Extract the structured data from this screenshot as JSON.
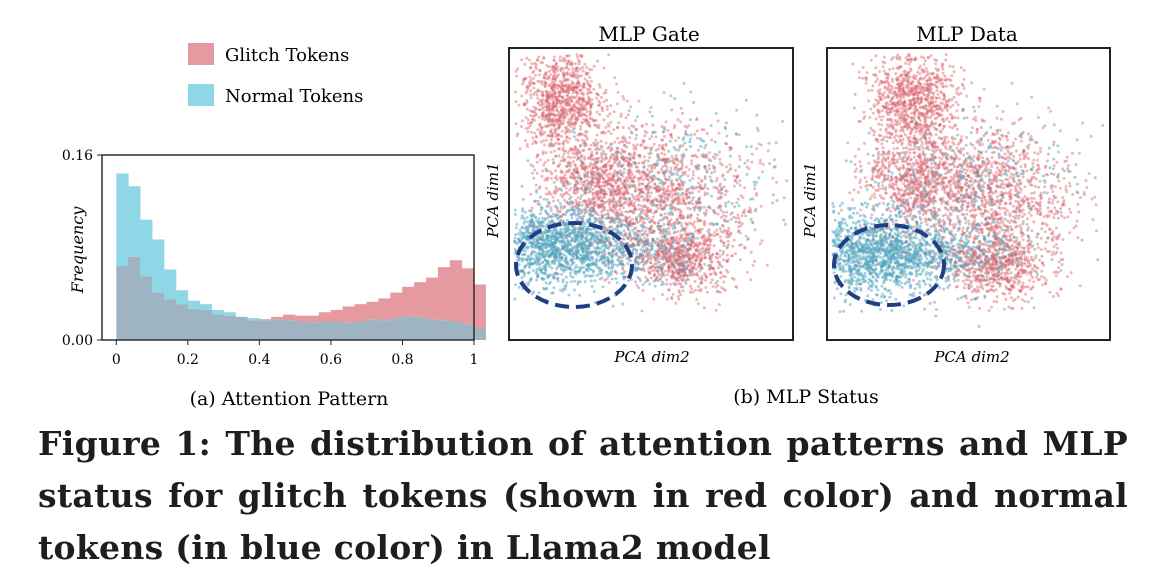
{
  "legend": {
    "glitch_label": "Glitch Tokens",
    "normal_label": "Normal Tokens"
  },
  "colors": {
    "glitch": "#e59a9f",
    "normal": "#8fd6e6",
    "overlap": "#9fb4c3",
    "glitch_dot": "#d9646c",
    "normal_dot": "#4fa3bd",
    "ellipse": "#1f3f82"
  },
  "subcaptions": {
    "a": "(a) Attention Pattern",
    "b": "(b) MLP Status"
  },
  "scatter_titles": {
    "gate": "MLP Gate",
    "data": "MLP Data"
  },
  "caption_lines": [
    "Figure 1: The distribution of attention patterns and MLP",
    "status for glitch tokens (shown in red color) and normal",
    "tokens (in blue color) in Llama2 model"
  ],
  "chart_data": [
    {
      "type": "bar",
      "subtype": "overlapping histogram",
      "ylabel": "Frequency",
      "yticks": [
        "0.00",
        "0.16"
      ],
      "ylim": [
        0,
        0.16
      ],
      "xticks": [
        "0",
        "0.2",
        "0.4",
        "0.6",
        "0.8",
        "1"
      ],
      "xlim": [
        -0.04,
        1.0
      ],
      "bin_width": 0.0333,
      "series": [
        {
          "name": "Glitch Tokens",
          "values": [
            0.064,
            0.072,
            0.055,
            0.041,
            0.035,
            0.031,
            0.027,
            0.026,
            0.022,
            0.021,
            0.02,
            0.017,
            0.018,
            0.02,
            0.022,
            0.021,
            0.021,
            0.024,
            0.026,
            0.029,
            0.031,
            0.033,
            0.036,
            0.041,
            0.046,
            0.05,
            0.054,
            0.063,
            0.069,
            0.062,
            0.048
          ]
        },
        {
          "name": "Normal Tokens",
          "values": [
            0.144,
            0.133,
            0.104,
            0.087,
            0.061,
            0.043,
            0.034,
            0.031,
            0.026,
            0.024,
            0.02,
            0.019,
            0.017,
            0.018,
            0.017,
            0.016,
            0.015,
            0.016,
            0.016,
            0.015,
            0.016,
            0.018,
            0.017,
            0.019,
            0.021,
            0.02,
            0.018,
            0.017,
            0.016,
            0.014,
            0.01
          ]
        }
      ]
    },
    {
      "type": "scatter",
      "title": "MLP Gate",
      "xlabel": "PCA dim2",
      "ylabel": "PCA dim1",
      "series": [
        {
          "name": "Glitch Tokens",
          "clusters": [
            [
              0.18,
              0.18,
              0.07,
              0.09,
              900
            ],
            [
              0.5,
              0.5,
              0.18,
              0.12,
              1300
            ],
            [
              0.62,
              0.72,
              0.09,
              0.06,
              600
            ],
            [
              0.3,
              0.45,
              0.09,
              0.07,
              500
            ]
          ]
        },
        {
          "name": "Normal Tokens",
          "clusters": [
            [
              0.16,
              0.67,
              0.13,
              0.07,
              1400
            ],
            [
              0.45,
              0.7,
              0.15,
              0.06,
              400
            ],
            [
              0.55,
              0.45,
              0.2,
              0.1,
              300
            ]
          ]
        }
      ]
    },
    {
      "type": "scatter",
      "title": "MLP Data",
      "xlabel": "PCA dim2",
      "ylabel": "PCA dim1",
      "series": [
        {
          "name": "Glitch Tokens",
          "clusters": [
            [
              0.3,
              0.18,
              0.08,
              0.09,
              900
            ],
            [
              0.55,
              0.5,
              0.17,
              0.12,
              1300
            ],
            [
              0.6,
              0.75,
              0.09,
              0.06,
              600
            ],
            [
              0.3,
              0.45,
              0.09,
              0.07,
              500
            ]
          ]
        },
        {
          "name": "Normal Tokens",
          "clusters": [
            [
              0.17,
              0.7,
              0.13,
              0.07,
              1400
            ],
            [
              0.45,
              0.7,
              0.15,
              0.06,
              400
            ],
            [
              0.5,
              0.45,
              0.2,
              0.1,
              300
            ]
          ]
        }
      ]
    }
  ]
}
